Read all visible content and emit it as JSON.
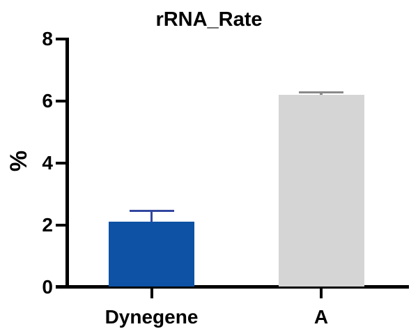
{
  "chart_data": {
    "type": "bar",
    "title": "rRNA_Rate",
    "ylabel": "%",
    "xlabel": "",
    "categories": [
      "Dynegene",
      "A"
    ],
    "values": [
      2.1,
      6.2
    ],
    "errors_upper": [
      0.35,
      0.07
    ],
    "bar_colors": [
      "#0d52a5",
      "#d5d5d5"
    ],
    "error_bar_colors": [
      "#32479f",
      "#8a8a8a"
    ],
    "ylim": [
      0,
      8
    ],
    "yticks": [
      "0",
      "2",
      "4",
      "6",
      "8"
    ],
    "grid": false,
    "legend": null,
    "background_color": "#ffffff",
    "axis_color": "#000000"
  }
}
